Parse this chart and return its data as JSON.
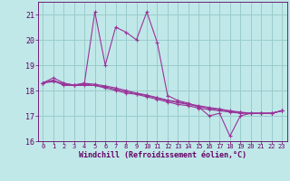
{
  "xlabel": "Windchill (Refroidissement éolien,°C)",
  "bg_color": "#c0e8e8",
  "line_color": "#993399",
  "grid_color": "#99cccc",
  "text_color": "#660066",
  "xlim": [
    -0.5,
    23.5
  ],
  "ylim": [
    16.0,
    21.5
  ],
  "yticks": [
    16,
    17,
    18,
    19,
    20,
    21
  ],
  "xticks": [
    0,
    1,
    2,
    3,
    4,
    5,
    6,
    7,
    8,
    9,
    10,
    11,
    12,
    13,
    14,
    15,
    16,
    17,
    18,
    19,
    20,
    21,
    22,
    23
  ],
  "series": [
    [
      18.3,
      18.5,
      18.3,
      18.2,
      18.3,
      21.1,
      19.0,
      20.5,
      20.3,
      20.0,
      21.1,
      19.9,
      17.8,
      17.6,
      17.5,
      17.35,
      17.0,
      17.1,
      16.2,
      17.0,
      17.1,
      17.1,
      17.1,
      17.2
    ],
    [
      18.3,
      18.4,
      18.2,
      18.2,
      18.2,
      18.2,
      18.1,
      18.0,
      17.9,
      17.85,
      17.75,
      17.65,
      17.55,
      17.45,
      17.4,
      17.3,
      17.25,
      17.2,
      17.15,
      17.1,
      17.1,
      17.1,
      17.1,
      17.2
    ],
    [
      18.3,
      18.4,
      18.25,
      18.2,
      18.25,
      18.2,
      18.15,
      18.05,
      17.95,
      17.87,
      17.8,
      17.7,
      17.6,
      17.52,
      17.45,
      17.37,
      17.3,
      17.25,
      17.18,
      17.13,
      17.1,
      17.1,
      17.1,
      17.2
    ],
    [
      18.3,
      18.35,
      18.28,
      18.22,
      18.28,
      18.25,
      18.18,
      18.1,
      18.0,
      17.9,
      17.82,
      17.72,
      17.62,
      17.55,
      17.47,
      17.4,
      17.33,
      17.27,
      17.2,
      17.15,
      17.1,
      17.1,
      17.1,
      17.2
    ]
  ]
}
